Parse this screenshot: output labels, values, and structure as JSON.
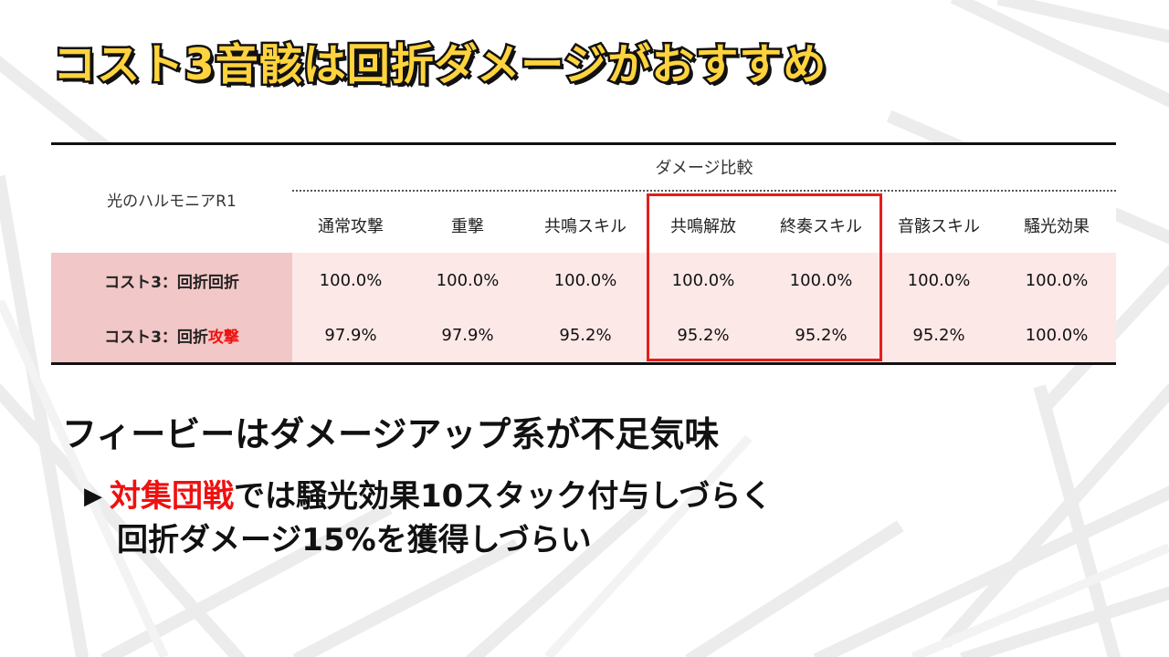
{
  "title": "コスト3音骸は回折ダメージがおすすめ",
  "table": {
    "corner_label": "光のハルモニアR1",
    "group_header": "ダメージ比較",
    "columns": [
      "通常攻撃",
      "重撃",
      "共鳴スキル",
      "共鳴解放",
      "終奏スキル",
      "音骸スキル",
      "騒光効果"
    ],
    "rows": [
      {
        "label_main": "コスト3：回折回折",
        "label_accent": "",
        "values": [
          "100.0%",
          "100.0%",
          "100.0%",
          "100.0%",
          "100.0%",
          "100.0%",
          "100.0%"
        ]
      },
      {
        "label_main": "コスト3：回折",
        "label_accent": "攻撃",
        "values": [
          "97.9%",
          "97.9%",
          "95.2%",
          "95.2%",
          "95.2%",
          "95.2%",
          "100.0%"
        ]
      }
    ]
  },
  "subheading": "フィービーはダメージアップ系が不足気味",
  "note": {
    "arrow": "▶",
    "accent": "対集団戦",
    "line1_rest": "では騒光効果10スタック付与しづらく",
    "line2": "回折ダメージ15%を獲得しづらい"
  },
  "colors": {
    "title_fill": "#ffd33d",
    "accent_red": "#ee1111",
    "highlight_border": "#e51e1e",
    "row_header_bg": "#f2c7c7",
    "cell_bg": "#fde8e8"
  }
}
